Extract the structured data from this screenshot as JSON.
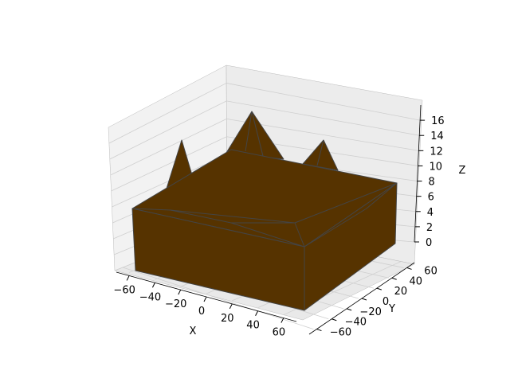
{
  "chart_data": {
    "type": "surface3d",
    "title": "",
    "xlabel": "X",
    "ylabel": "Y",
    "zlabel": "Z",
    "xlim": [
      -70,
      70
    ],
    "ylim": [
      -70,
      70
    ],
    "zlim": [
      0,
      18
    ],
    "x_ticks": [
      -60,
      -40,
      -20,
      0,
      20,
      40,
      60
    ],
    "y_ticks": [
      -60,
      -40,
      -20,
      0,
      20,
      40,
      60
    ],
    "z_ticks": [
      0,
      2,
      4,
      6,
      8,
      10,
      12,
      14,
      16
    ],
    "grid": true,
    "colors": {
      "surface": "#563300",
      "edge": "#444444",
      "pane": "#f2f2f2",
      "grid": "#cfcfcf"
    },
    "box": {
      "x_range": [
        -65,
        65
      ],
      "y_range": [
        -65,
        65
      ],
      "top_z": 8
    },
    "peaks": [
      {
        "x": 5,
        "y": 15,
        "z": 17
      },
      {
        "x": -40,
        "y": 30,
        "z": 15
      },
      {
        "x": 55,
        "y": 20,
        "z": 13
      }
    ]
  }
}
